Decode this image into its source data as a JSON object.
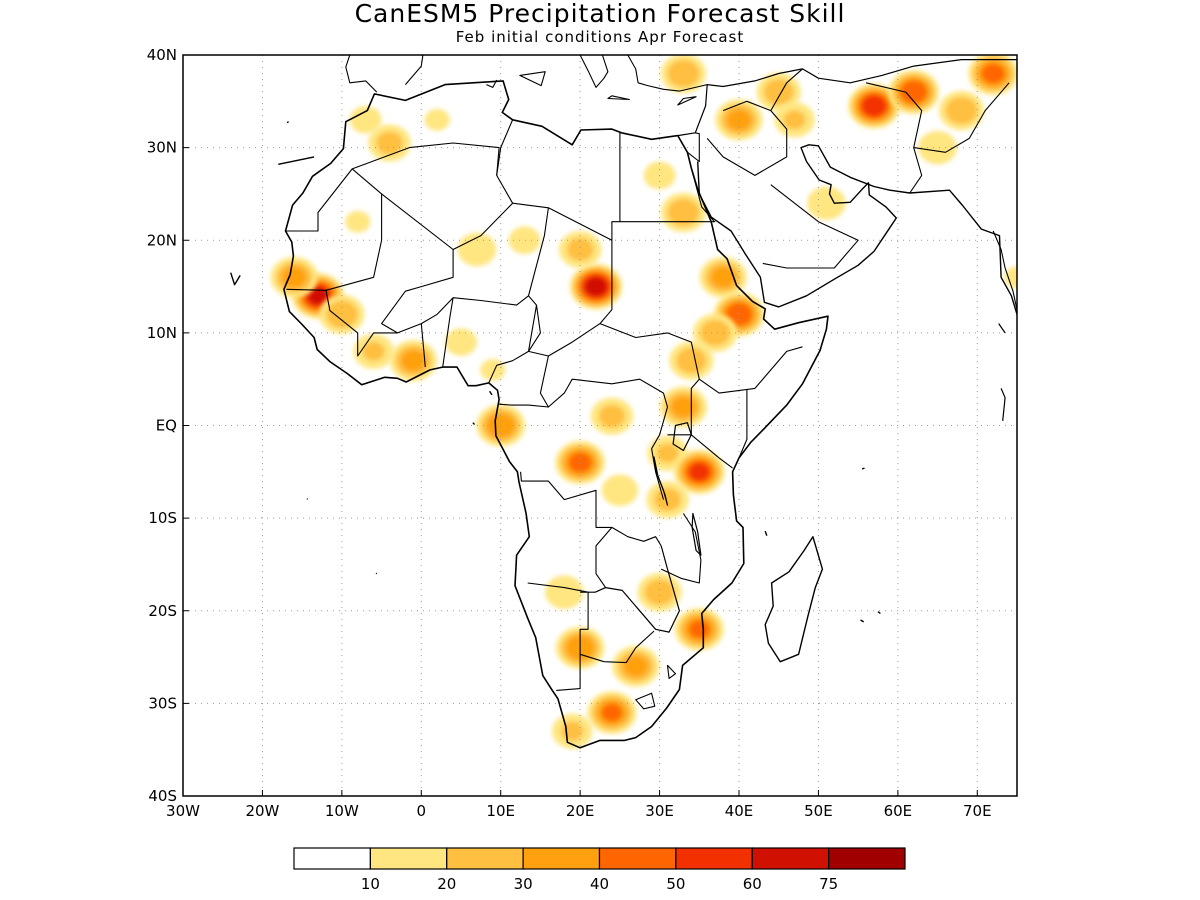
{
  "title": "CanESM5 Precipitation Forecast Skill",
  "subtitle": "Feb initial conditions  Apr Forecast",
  "chart_data": {
    "type": "heatmap",
    "title": "CanESM5 Precipitation Forecast Skill",
    "subtitle": "Feb initial conditions  Apr Forecast",
    "xlim": [
      -30,
      75
    ],
    "ylim": [
      -40,
      40
    ],
    "grid": true,
    "x_ticks": [
      {
        "v": -30,
        "label": "30W"
      },
      {
        "v": -20,
        "label": "20W"
      },
      {
        "v": -10,
        "label": "10W"
      },
      {
        "v": 0,
        "label": "0"
      },
      {
        "v": 10,
        "label": "10E"
      },
      {
        "v": 20,
        "label": "20E"
      },
      {
        "v": 30,
        "label": "30E"
      },
      {
        "v": 40,
        "label": "40E"
      },
      {
        "v": 50,
        "label": "50E"
      },
      {
        "v": 60,
        "label": "60E"
      },
      {
        "v": 70,
        "label": "70E"
      }
    ],
    "y_ticks": [
      {
        "v": 40,
        "label": "40N"
      },
      {
        "v": 30,
        "label": "30N"
      },
      {
        "v": 20,
        "label": "20N"
      },
      {
        "v": 10,
        "label": "10N"
      },
      {
        "v": 0,
        "label": "EQ"
      },
      {
        "v": -10,
        "label": "10S"
      },
      {
        "v": -20,
        "label": "20S"
      },
      {
        "v": -30,
        "label": "30S"
      },
      {
        "v": -40,
        "label": "40S"
      }
    ],
    "colorbar": {
      "labels": [
        "10",
        "20",
        "30",
        "40",
        "50",
        "60",
        "75"
      ],
      "colors": [
        "#ffffff",
        "#ffe680",
        "#ffbf40",
        "#ffa010",
        "#ff6600",
        "#f23000",
        "#d01000",
        "#a00000"
      ]
    },
    "blobs": [
      {
        "lon": -4,
        "lat": 30.5,
        "value": 25
      },
      {
        "lon": -7,
        "lat": 33,
        "value": 15
      },
      {
        "lon": 2,
        "lat": 33,
        "value": 12
      },
      {
        "lon": -13,
        "lat": 14,
        "value": 62
      },
      {
        "lon": -16,
        "lat": 16,
        "value": 35
      },
      {
        "lon": -10,
        "lat": 12,
        "value": 30
      },
      {
        "lon": -6,
        "lat": 8,
        "value": 22
      },
      {
        "lon": -1,
        "lat": 7,
        "value": 35
      },
      {
        "lon": -8,
        "lat": 22,
        "value": 12
      },
      {
        "lon": 5,
        "lat": 9,
        "value": 15
      },
      {
        "lon": 9,
        "lat": 6,
        "value": 12
      },
      {
        "lon": 7,
        "lat": 19,
        "value": 20
      },
      {
        "lon": 13,
        "lat": 20,
        "value": 15
      },
      {
        "lon": 22,
        "lat": 15,
        "value": 65
      },
      {
        "lon": 20,
        "lat": 19,
        "value": 25
      },
      {
        "lon": 30,
        "lat": 27,
        "value": 15
      },
      {
        "lon": 33,
        "lat": 23,
        "value": 30
      },
      {
        "lon": 38,
        "lat": 16,
        "value": 35
      },
      {
        "lon": 40,
        "lat": 12,
        "value": 50
      },
      {
        "lon": 37,
        "lat": 10,
        "value": 28
      },
      {
        "lon": 34,
        "lat": 7,
        "value": 28
      },
      {
        "lon": 33,
        "lat": 2,
        "value": 35
      },
      {
        "lon": 10,
        "lat": 0,
        "value": 40
      },
      {
        "lon": 20,
        "lat": -4,
        "value": 45
      },
      {
        "lon": 24,
        "lat": 1,
        "value": 25
      },
      {
        "lon": 31,
        "lat": -3,
        "value": 22
      },
      {
        "lon": 35,
        "lat": -5,
        "value": 52
      },
      {
        "lon": 31,
        "lat": -8,
        "value": 25
      },
      {
        "lon": 25,
        "lat": -7,
        "value": 18
      },
      {
        "lon": 30,
        "lat": -18,
        "value": 28
      },
      {
        "lon": 35,
        "lat": -22,
        "value": 42
      },
      {
        "lon": 18,
        "lat": -18,
        "value": 20
      },
      {
        "lon": 20,
        "lat": -24,
        "value": 40
      },
      {
        "lon": 27,
        "lat": -26,
        "value": 35
      },
      {
        "lon": 24,
        "lat": -31,
        "value": 42
      },
      {
        "lon": 19,
        "lat": -33,
        "value": 22
      },
      {
        "lon": 40,
        "lat": 33,
        "value": 35
      },
      {
        "lon": 33,
        "lat": 38,
        "value": 30
      },
      {
        "lon": 45,
        "lat": 36,
        "value": 28
      },
      {
        "lon": 57,
        "lat": 34.5,
        "value": 58
      },
      {
        "lon": 62,
        "lat": 36,
        "value": 50
      },
      {
        "lon": 68,
        "lat": 34,
        "value": 30
      },
      {
        "lon": 72,
        "lat": 38,
        "value": 45
      },
      {
        "lon": 65,
        "lat": 30,
        "value": 20
      },
      {
        "lon": 51,
        "lat": 24,
        "value": 20
      },
      {
        "lon": 47,
        "lat": 33,
        "value": 22
      },
      {
        "lon": 75,
        "lat": 16,
        "value": 12
      }
    ]
  }
}
